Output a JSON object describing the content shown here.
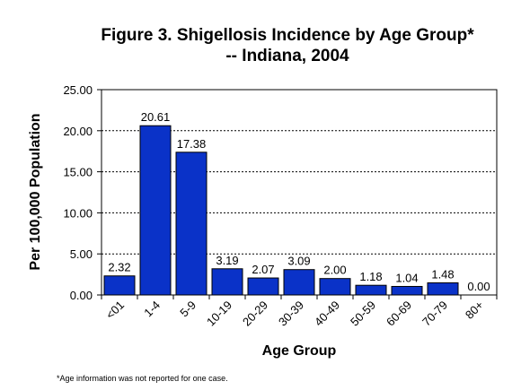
{
  "chart_data": {
    "type": "bar",
    "title": "Figure 3. Shigellosis Incidence by Age Group*",
    "subtitle": "-- Indiana, 2004",
    "xlabel": "Age Group",
    "ylabel": "Per 100,000 Population",
    "categories": [
      "<01",
      "1-4",
      "5-9",
      "10-19",
      "20-29",
      "30-39",
      "40-49",
      "50-59",
      "60-69",
      "70-79",
      "80+"
    ],
    "values": [
      2.32,
      20.61,
      17.38,
      3.19,
      2.07,
      3.09,
      2.0,
      1.18,
      1.04,
      1.48,
      0.0
    ],
    "data_labels": [
      "2.32",
      "20.61",
      "17.38",
      "3.19",
      "2.07",
      "3.09",
      "2.00",
      "1.18",
      "1.04",
      "1.48",
      "0.00"
    ],
    "yticks": [
      "0.00",
      "5.00",
      "10.00",
      "15.00",
      "20.00",
      "25.00"
    ],
    "ylim": [
      0,
      25
    ],
    "grid": true,
    "bar_color": "#0a32c8",
    "footnote": "*Age information was not reported for one case."
  }
}
